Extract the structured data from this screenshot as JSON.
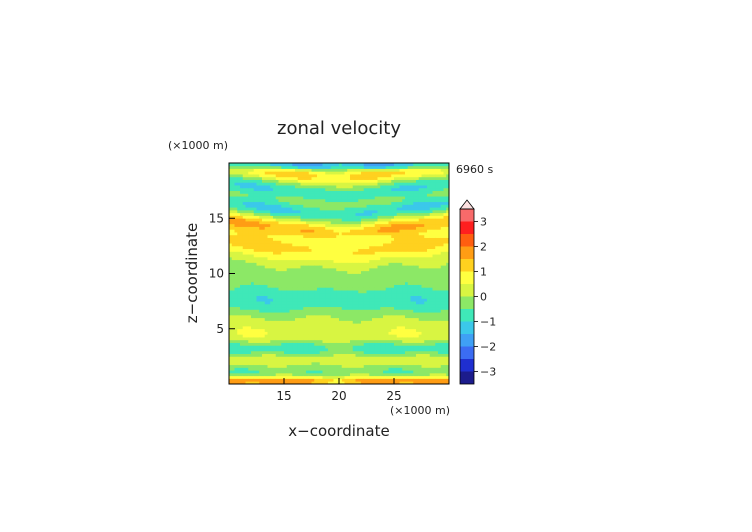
{
  "chart_data": {
    "type": "heatmap",
    "title": "zonal velocity",
    "xlabel": "x−coordinate",
    "ylabel": "z−coordinate",
    "x_unit": "(×1000 m)",
    "y_unit": "(×1000 m)",
    "time_label": "6960 s",
    "xlim": [
      10,
      30
    ],
    "ylim": [
      0,
      20
    ],
    "x_ticks": [
      15,
      20,
      25
    ],
    "y_ticks": [
      5,
      10,
      15
    ],
    "colorbar": {
      "levels": [
        -3.5,
        -3,
        -2.5,
        -2,
        -1.5,
        -1,
        -0.5,
        0,
        0.5,
        1,
        1.5,
        2,
        2.5,
        3,
        3.5
      ],
      "colors": [
        "#1c1c8c",
        "#1f2fd0",
        "#3b6cf2",
        "#3fa0f5",
        "#3bc8ea",
        "#3fe8b8",
        "#8ce866",
        "#d8f542",
        "#ffff40",
        "#ffd11f",
        "#ff9d14",
        "#ff5e10",
        "#ff1f1f",
        "#f86a6a",
        "#f4aaaa"
      ],
      "tick_labels": [
        "3",
        "2",
        "1",
        "0",
        "−1",
        "−2",
        "−3"
      ],
      "tick_values": [
        3,
        2,
        1,
        0,
        -1,
        -2,
        -3
      ],
      "extend": "max"
    },
    "bands": [
      {
        "z": 0.3,
        "amp": 2.0,
        "w": 0.3
      },
      {
        "z": 1.2,
        "amp": -0.6,
        "w": 0.5
      },
      {
        "z": 2.2,
        "amp": 0.5,
        "w": 0.6
      },
      {
        "z": 3.2,
        "amp": -1.0,
        "w": 0.5
      },
      {
        "z": 4.4,
        "amp": 0.4,
        "w": 0.6
      },
      {
        "z": 5.6,
        "amp": 0.25,
        "w": 0.8
      },
      {
        "z": 7.6,
        "amp": -0.9,
        "w": 1.0
      },
      {
        "z": 10.0,
        "amp": -0.2,
        "w": 0.6
      },
      {
        "z": 11.8,
        "amp": 1.2,
        "w": 0.8
      },
      {
        "z": 13.6,
        "amp": 1.5,
        "w": 0.5
      },
      {
        "z": 15.2,
        "amp": -1.1,
        "w": 0.5
      },
      {
        "z": 17.0,
        "amp": -1.0,
        "w": 0.5
      },
      {
        "z": 18.6,
        "amp": 1.4,
        "w": 0.5
      },
      {
        "z": 19.8,
        "amp": -2.0,
        "w": 0.3
      }
    ]
  }
}
